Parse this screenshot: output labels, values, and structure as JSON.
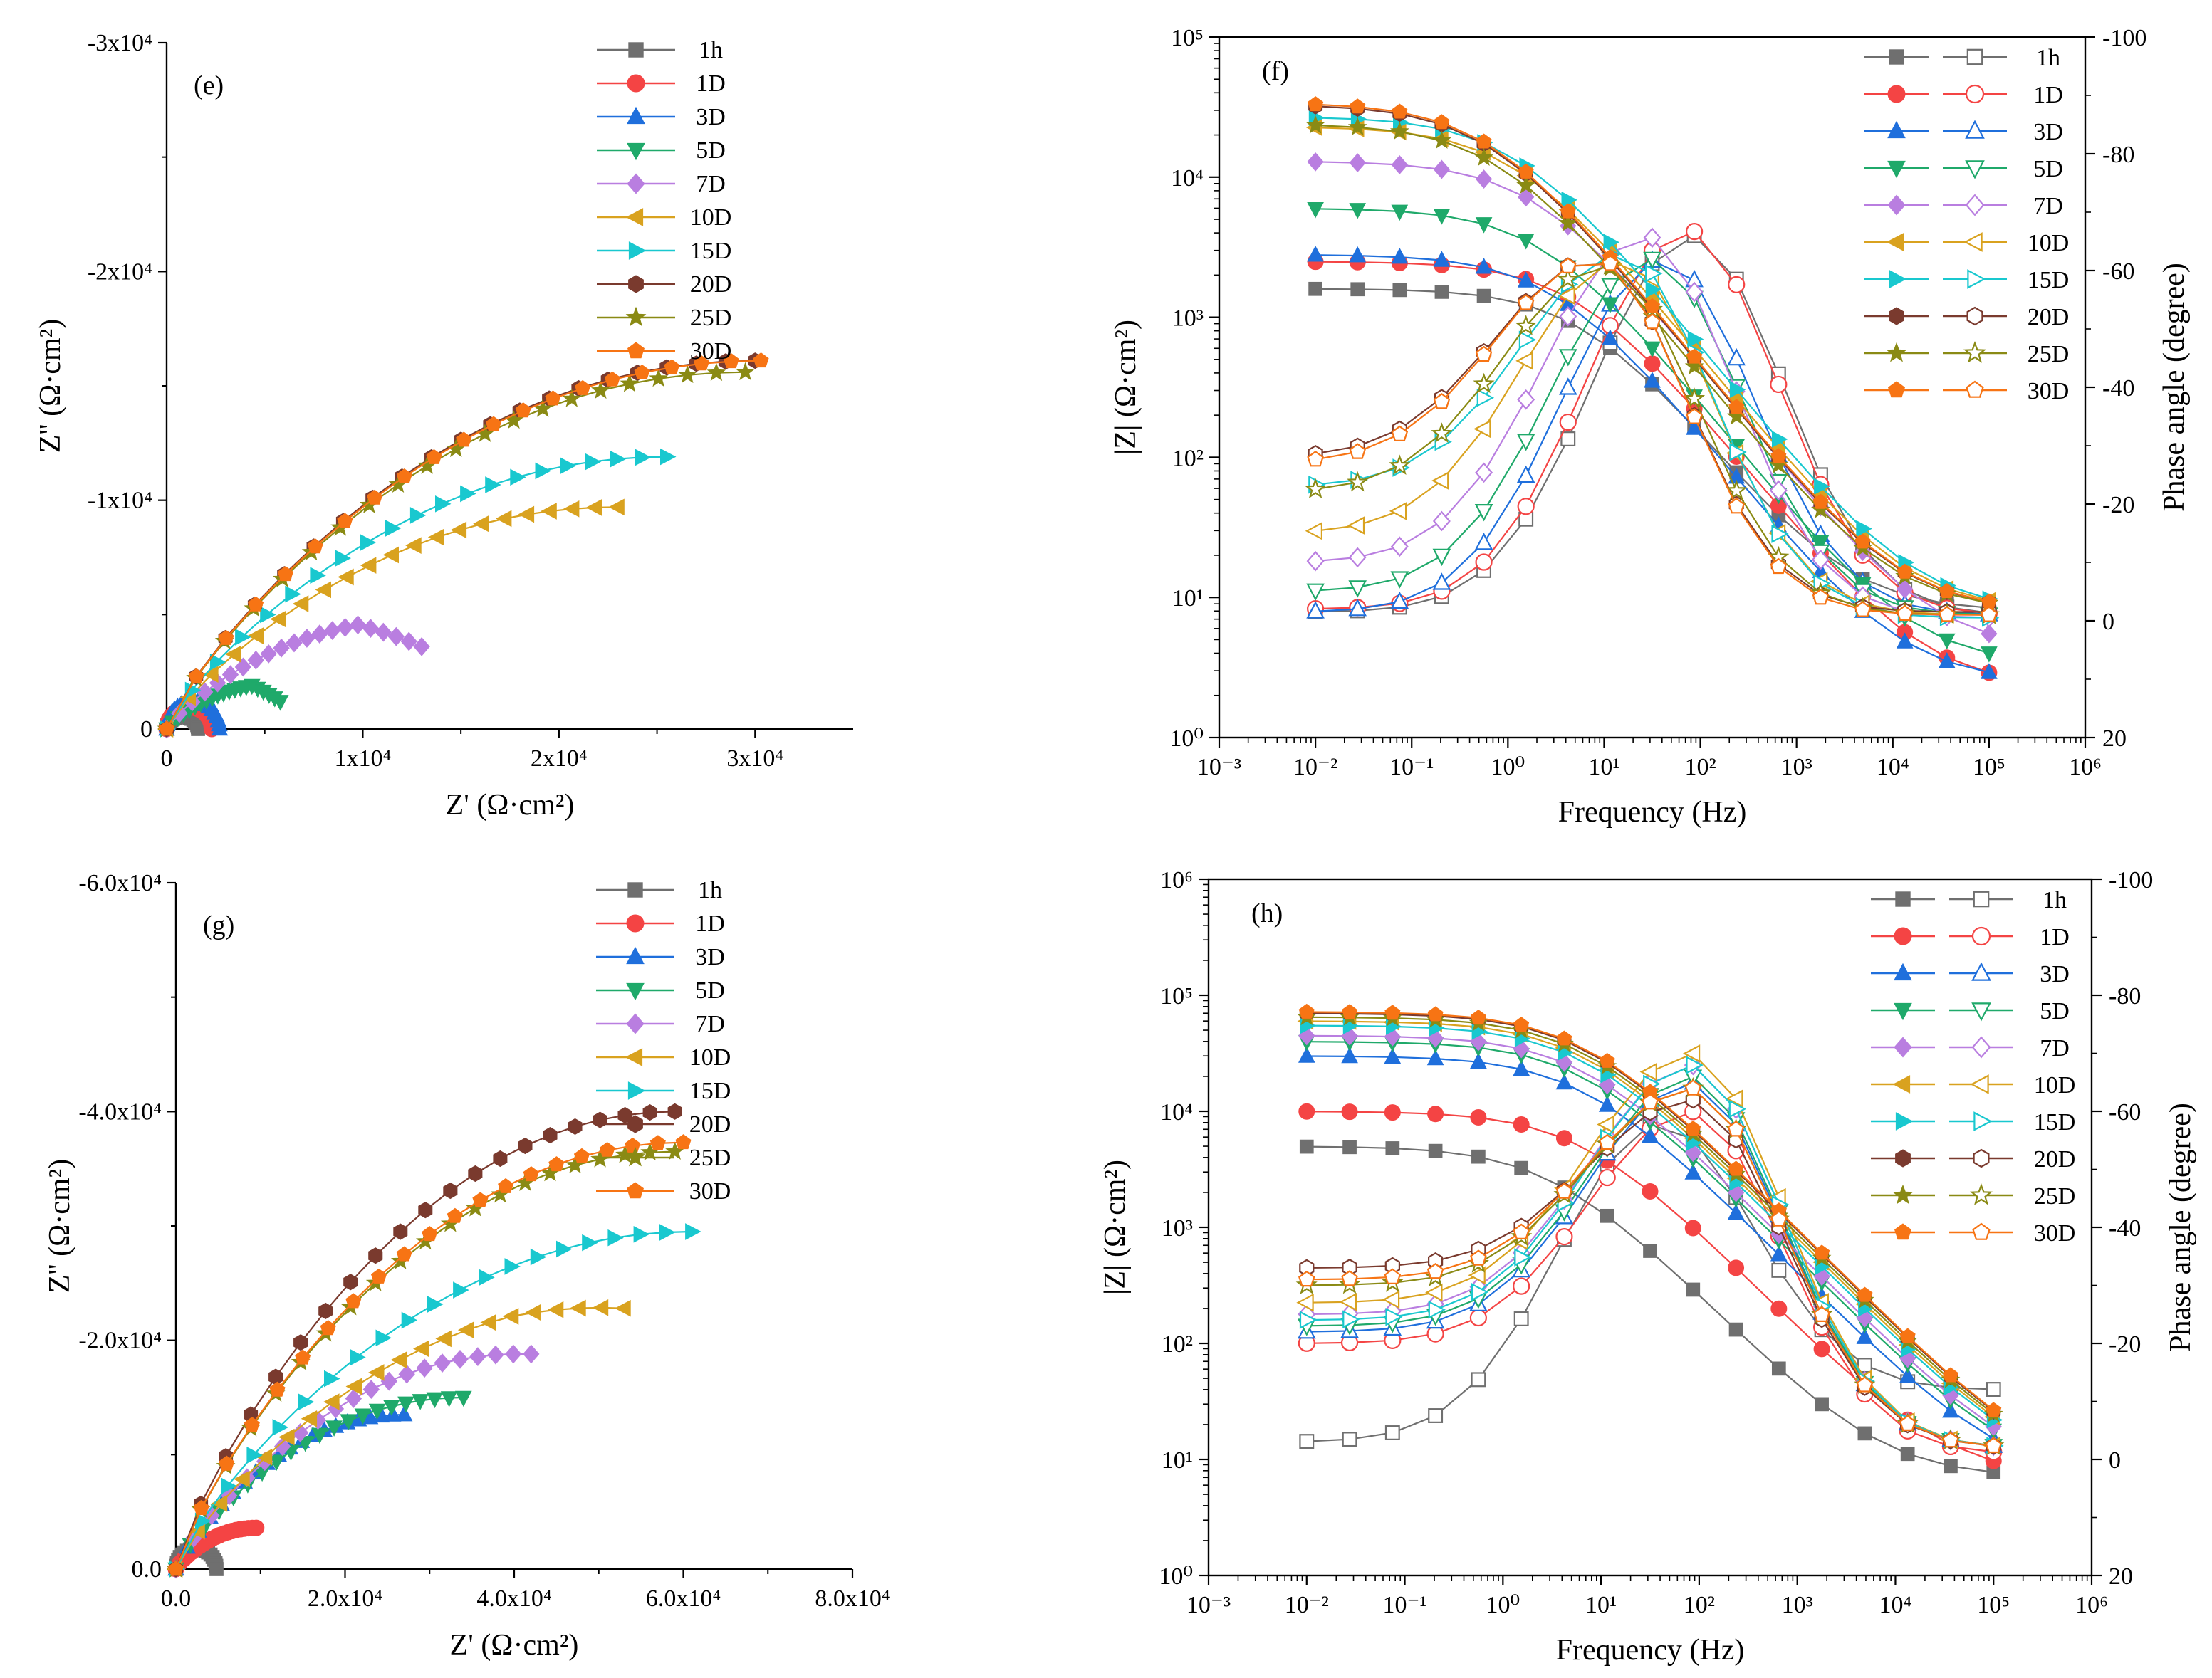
{
  "chart_data": [
    {
      "id": "e",
      "type": "scatter",
      "panel_label": "(e)",
      "xlabel": "Z'  (Ω·cm²)",
      "ylabel": "Z''  (Ω·cm²)",
      "xlim": [
        0,
        35000
      ],
      "ylim": [
        0,
        -30000
      ],
      "xticks": [
        {
          "v": 0,
          "t": "0"
        },
        {
          "v": 10000,
          "t": "1x10⁴"
        },
        {
          "v": 20000,
          "t": "2x10⁴"
        },
        {
          "v": 30000,
          "t": "3x10⁴"
        }
      ],
      "yticks": [
        {
          "v": 0,
          "t": "0"
        },
        {
          "v": -10000,
          "t": "-1x10⁴"
        },
        {
          "v": -20000,
          "t": "-2x10⁴"
        },
        {
          "v": -30000,
          "t": "-3x10⁴"
        }
      ],
      "legend": "top-right",
      "series": [
        {
          "name": "1h",
          "color": "#6f6f6f",
          "marker": "square",
          "rz": 1600,
          "peak": 550
        },
        {
          "name": "1D",
          "color": "#f44444",
          "marker": "circle",
          "rz": 2300,
          "peak": 950
        },
        {
          "name": "3D",
          "color": "#1f6fdc",
          "marker": "triangle-up",
          "rz": 2700,
          "peak": 1200
        },
        {
          "name": "5D",
          "color": "#1fa96a",
          "marker": "triangle-down",
          "rz": 5800,
          "peak": 2000,
          "end": 1200
        },
        {
          "name": "7D",
          "color": "#b97ee0",
          "marker": "diamond",
          "rz": 13000,
          "peak": 4800,
          "end": 3600
        },
        {
          "name": "10D",
          "color": "#d9a21f",
          "marker": "triangle-left",
          "rz": 23000,
          "peak": 9700,
          "end": 9700
        },
        {
          "name": "15D",
          "color": "#19c8cf",
          "marker": "triangle-right",
          "rz": 25500,
          "peak": 11900,
          "end": 11900
        },
        {
          "name": "20D",
          "color": "#7a3a2e",
          "marker": "hexagon",
          "rz": 30000,
          "peak": 16100,
          "end": 16100
        },
        {
          "name": "25D",
          "color": "#8a8a14",
          "marker": "star",
          "rz": 29500,
          "peak": 15600,
          "end": 15600
        },
        {
          "name": "30D",
          "color": "#f77414",
          "marker": "pentagon",
          "rz": 30300,
          "peak": 16100,
          "end": 16100
        }
      ]
    },
    {
      "id": "f",
      "type": "line",
      "panel_label": "(f)",
      "xlabel": "Frequency (Hz)",
      "ylabel": "|Z| (Ω·cm²)",
      "y2label": "Phase angle (degree)",
      "xlim_log10": [
        -3,
        6
      ],
      "ylim_log10": [
        0,
        5
      ],
      "y2lim": [
        20,
        -100
      ],
      "xticks": [
        "10⁻³",
        "10⁻²",
        "10⁻¹",
        "10⁰",
        "10¹",
        "10²",
        "10³",
        "10⁴",
        "10⁵",
        "10⁶"
      ],
      "yticks": [
        "10⁰",
        "10¹",
        "10²",
        "10³",
        "10⁴",
        "10⁵"
      ],
      "y2ticks": [
        "20",
        "0",
        "-20",
        "-40",
        "-60",
        "-80",
        "-100"
      ],
      "legend": "top-right",
      "series": [
        {
          "name": "1h",
          "color": "#6f6f6f",
          "marker": "square",
          "Z0": 1600,
          "Zhf": 8,
          "phi_low": 1.5,
          "phi_max": 66,
          "f_peak": 80,
          "phi_hf": 1
        },
        {
          "name": "1D",
          "color": "#f44444",
          "marker": "circle",
          "Z0": 2500,
          "Zhf": 2.3,
          "phi_low": 2,
          "phi_max": 67,
          "f_peak": 70,
          "phi_hf": 1
        },
        {
          "name": "3D",
          "color": "#1f6fdc",
          "marker": "triangle-up",
          "Z0": 2800,
          "Zhf": 2.5,
          "phi_low": 1.5,
          "phi_max": 62,
          "f_peak": 40,
          "phi_hf": 1
        },
        {
          "name": "5D",
          "color": "#1fa96a",
          "marker": "triangle-down",
          "Z0": 6000,
          "Zhf": 3.3,
          "phi_low": 5,
          "phi_max": 62,
          "f_peak": 30,
          "phi_hf": 1
        },
        {
          "name": "7D",
          "color": "#b97ee0",
          "marker": "diamond",
          "Z0": 13000,
          "Zhf": 4.2,
          "phi_low": 10,
          "phi_max": 66,
          "f_peak": 25,
          "phi_hf": 0.5
        },
        {
          "name": "10D",
          "color": "#d9a21f",
          "marker": "triangle-left",
          "Z0": 23000,
          "Zhf": 8,
          "phi_low": 15,
          "phi_max": 62,
          "f_peak": 15,
          "phi_hf": 1
        },
        {
          "name": "15D",
          "color": "#19c8cf",
          "marker": "triangle-right",
          "Z0": 27000,
          "Zhf": 8,
          "phi_low": 23,
          "phi_max": 63,
          "f_peak": 15,
          "phi_hf": 0.5
        },
        {
          "name": "20D",
          "color": "#7a3a2e",
          "marker": "hexagon",
          "Z0": 33000,
          "Zhf": 8,
          "phi_low": 28,
          "phi_max": 62,
          "f_peak": 8,
          "phi_hf": 1.5
        },
        {
          "name": "25D",
          "color": "#8a8a14",
          "marker": "star",
          "Z0": 24000,
          "Zhf": 8,
          "phi_low": 22,
          "phi_max": 61,
          "f_peak": 10,
          "phi_hf": 1
        },
        {
          "name": "30D",
          "color": "#f77414",
          "marker": "pentagon",
          "Z0": 34000,
          "Zhf": 8,
          "phi_low": 27,
          "phi_max": 62,
          "f_peak": 8,
          "phi_hf": 1
        }
      ]
    },
    {
      "id": "g",
      "type": "scatter",
      "panel_label": "(g)",
      "xlabel": "Z'  (Ω·cm²)",
      "ylabel": "Z''  (Ω·cm²)",
      "xlim": [
        0,
        80000
      ],
      "ylim": [
        0,
        -60000
      ],
      "xticks": [
        {
          "v": 0,
          "t": "0.0"
        },
        {
          "v": 20000,
          "t": "2.0x10⁴"
        },
        {
          "v": 40000,
          "t": "4.0x10⁴"
        },
        {
          "v": 60000,
          "t": "6.0x10⁴"
        },
        {
          "v": 80000,
          "t": "8.0x10⁴"
        }
      ],
      "yticks": [
        {
          "v": 0,
          "t": "0.0"
        },
        {
          "v": -20000,
          "t": "-2.0x10⁴"
        },
        {
          "v": -40000,
          "t": "-4.0x10⁴"
        },
        {
          "v": -60000,
          "t": "-6.0x10⁴"
        }
      ],
      "legend": "top-right",
      "series": [
        {
          "name": "1h",
          "color": "#6f6f6f",
          "marker": "square",
          "rz": 4800,
          "peak": 1800
        },
        {
          "name": "1D",
          "color": "#f44444",
          "marker": "circle",
          "rz": 9500,
          "peak": 3600,
          "end": 3600
        },
        {
          "name": "3D",
          "color": "#1f6fdc",
          "marker": "triangle-up",
          "rz": 27000,
          "peak": 13500,
          "end": 13500
        },
        {
          "name": "5D",
          "color": "#1fa96a",
          "marker": "triangle-down",
          "rz": 34000,
          "peak": 15000,
          "end": 15000
        },
        {
          "name": "7D",
          "color": "#b97ee0",
          "marker": "diamond",
          "rz": 42000,
          "peak": 19000,
          "end": 18800
        },
        {
          "name": "10D",
          "color": "#d9a21f",
          "marker": "triangle-left",
          "rz": 53000,
          "peak": 23300,
          "end": 22800
        },
        {
          "name": "15D",
          "color": "#19c8cf",
          "marker": "triangle-right",
          "rz": 61000,
          "peak": 29500,
          "end": 29500
        },
        {
          "name": "20D",
          "color": "#7a3a2e",
          "marker": "hexagon",
          "rz": 59000,
          "peak": 40000,
          "end": 40000
        },
        {
          "name": "25D",
          "color": "#8a8a14",
          "marker": "star",
          "rz": 59000,
          "peak": 36500,
          "end": 36500
        },
        {
          "name": "30D",
          "color": "#f77414",
          "marker": "pentagon",
          "rz": 60000,
          "peak": 37300,
          "end": 37300
        }
      ]
    },
    {
      "id": "h",
      "type": "line",
      "panel_label": "(h)",
      "xlabel": "Frequency (Hz)",
      "ylabel": "|Z| (Ω·cm²)",
      "y2label": "Phase angle (degree)",
      "xlim_log10": [
        -3,
        6
      ],
      "ylim_log10": [
        0,
        6
      ],
      "y2lim": [
        20,
        -100
      ],
      "xticks": [
        "10⁻³",
        "10⁻²",
        "10⁻¹",
        "10⁰",
        "10¹",
        "10²",
        "10³",
        "10⁴",
        "10⁵",
        "10⁶"
      ],
      "yticks": [
        "10⁰",
        "10¹",
        "10²",
        "10³",
        "10⁴",
        "10⁵",
        "10⁶"
      ],
      "y2ticks": [
        "20",
        "0",
        "-20",
        "-40",
        "-60",
        "-80",
        "-100"
      ],
      "legend": "top-right",
      "series": [
        {
          "name": "1h",
          "color": "#6f6f6f",
          "marker": "square",
          "Z0": 5000,
          "Zhf": 7,
          "phi_low": 3,
          "phi_max": 58,
          "f_peak": 40,
          "phi_hf": 12
        },
        {
          "name": "1D",
          "color": "#f44444",
          "marker": "circle",
          "Z0": 10000,
          "Zhf": 7,
          "phi_low": 20,
          "phi_max": 60,
          "f_peak": 80,
          "phi_hf": 1
        },
        {
          "name": "3D",
          "color": "#1f6fdc",
          "marker": "triangle-up",
          "Z0": 30000,
          "Zhf": 7,
          "phi_low": 22,
          "phi_max": 65,
          "f_peak": 80,
          "phi_hf": 2
        },
        {
          "name": "5D",
          "color": "#1fa96a",
          "marker": "triangle-down",
          "Z0": 40000,
          "Zhf": 7,
          "phi_low": 23,
          "phi_max": 66,
          "f_peak": 80,
          "phi_hf": 2
        },
        {
          "name": "7D",
          "color": "#b97ee0",
          "marker": "diamond",
          "Z0": 45000,
          "Zhf": 7,
          "phi_low": 25,
          "phi_max": 68,
          "f_peak": 80,
          "phi_hf": 2
        },
        {
          "name": "10D",
          "color": "#d9a21f",
          "marker": "triangle-left",
          "Z0": 60000,
          "Zhf": 7,
          "phi_low": 27,
          "phi_max": 70,
          "f_peak": 80,
          "phi_hf": 2
        },
        {
          "name": "15D",
          "color": "#19c8cf",
          "marker": "triangle-right",
          "Z0": 55000,
          "Zhf": 7,
          "phi_low": 24,
          "phi_max": 68,
          "f_peak": 80,
          "phi_hf": 2
        },
        {
          "name": "20D",
          "color": "#7a3a2e",
          "marker": "hexagon",
          "Z0": 70000,
          "Zhf": 7,
          "phi_low": 33,
          "phi_max": 62,
          "f_peak": 80,
          "phi_hf": 2
        },
        {
          "name": "25D",
          "color": "#8a8a14",
          "marker": "star",
          "Z0": 65000,
          "Zhf": 7,
          "phi_low": 30,
          "phi_max": 64,
          "f_peak": 80,
          "phi_hf": 2
        },
        {
          "name": "30D",
          "color": "#f77414",
          "marker": "pentagon",
          "Z0": 72000,
          "Zhf": 7,
          "phi_low": 31,
          "phi_max": 64,
          "f_peak": 80,
          "phi_hf": 2
        }
      ]
    }
  ]
}
